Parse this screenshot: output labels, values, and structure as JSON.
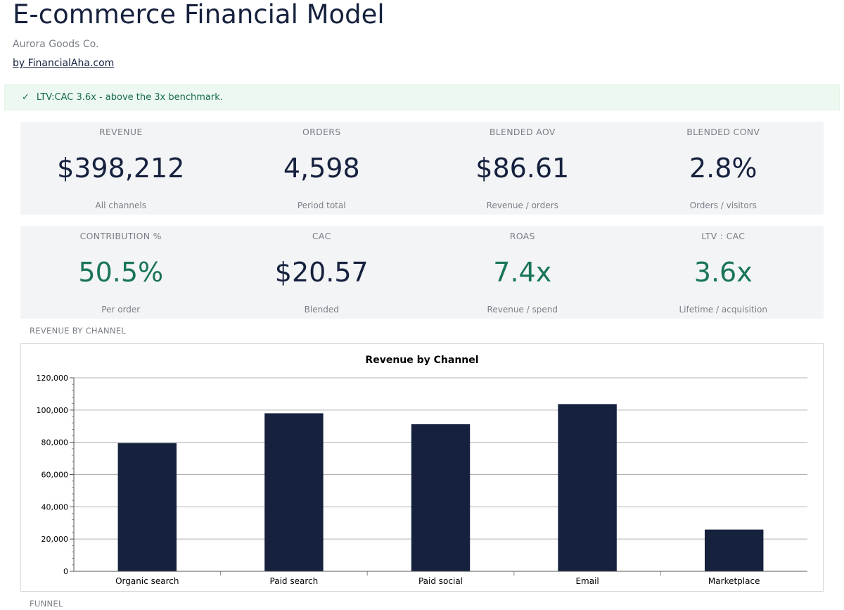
{
  "header": {
    "title": "E-commerce Financial Model",
    "company": "Aurora Goods Co.",
    "byline": "by FinancialAha.com"
  },
  "alert": {
    "icon": "check-icon",
    "icon_glyph": "✓",
    "text": "LTV:CAC 3.6x - above the 3x benchmark.",
    "color": "#176b4c",
    "background": "#ecf8f0"
  },
  "kpis_row1": [
    {
      "label": "REVENUE",
      "value": "$398,212",
      "sub": "All channels"
    },
    {
      "label": "ORDERS",
      "value": "4,598",
      "sub": "Period total"
    },
    {
      "label": "BLENDED AOV",
      "value": "$86.61",
      "sub": "Revenue / orders"
    },
    {
      "label": "BLENDED CONV",
      "value": "2.8%",
      "sub": "Orders / visitors"
    }
  ],
  "kpis_row2": [
    {
      "label": "CONTRIBUTION %",
      "value": "50.5%",
      "sub": "Per order"
    },
    {
      "label": "CAC",
      "value": "$20.57",
      "sub": "Blended"
    },
    {
      "label": "ROAS",
      "value": "7.4x",
      "sub": "Revenue / spend"
    },
    {
      "label": "LTV : CAC",
      "value": "3.6x",
      "sub": "Lifetime / acquisition"
    }
  ],
  "sections": {
    "revenue_by_channel": "REVENUE BY CHANNEL",
    "funnel": "FUNNEL"
  },
  "colors": {
    "navy": "#16213e",
    "positive": "#197557",
    "muted": "#7b7f87"
  },
  "chart_data": {
    "type": "bar",
    "title": "Revenue by Channel",
    "categories": [
      "Organic search",
      "Paid search",
      "Paid social",
      "Email",
      "Marketplace"
    ],
    "values": [
      79500,
      98000,
      91200,
      103700,
      25900
    ],
    "ylim": [
      0,
      120000
    ],
    "yticks": [
      0,
      20000,
      40000,
      60000,
      80000,
      100000,
      120000
    ],
    "ytick_labels": [
      "0",
      "20,000",
      "40,000",
      "60,000",
      "80,000",
      "100,000",
      "120,000"
    ],
    "xlabel": "",
    "ylabel": "",
    "grid": true,
    "bar_color": "#16213e"
  }
}
